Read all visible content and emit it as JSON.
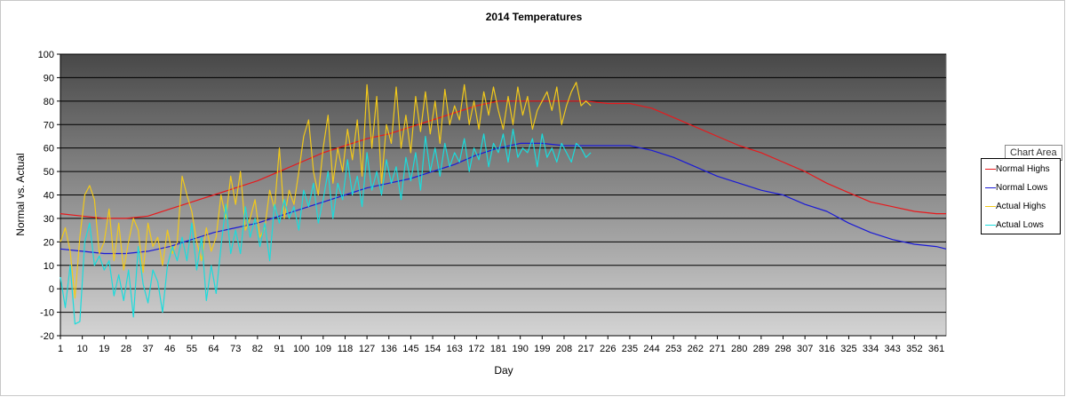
{
  "chart_data": {
    "type": "line",
    "title": "2014 Temperatures",
    "xlabel": "Day",
    "ylabel": "Normal vs. Actual",
    "ylim": [
      -20,
      100
    ],
    "xlim": [
      1,
      365
    ],
    "y_ticks": [
      "-20",
      "-10",
      "0",
      "10",
      "20",
      "30",
      "40",
      "50",
      "60",
      "70",
      "80",
      "90",
      "100"
    ],
    "x_ticks": [
      "1",
      "10",
      "19",
      "28",
      "37",
      "46",
      "55",
      "64",
      "73",
      "82",
      "91",
      "100",
      "109",
      "118",
      "127",
      "136",
      "145",
      "154",
      "163",
      "172",
      "181",
      "190",
      "199",
      "208",
      "217",
      "226",
      "235",
      "244",
      "253",
      "262",
      "271",
      "280",
      "289",
      "298",
      "307",
      "316",
      "325",
      "334",
      "343",
      "352",
      "361"
    ],
    "grid": true,
    "legend_position": "right",
    "series": [
      {
        "name": "Normal Highs",
        "color": "#e8191c",
        "x": [
          1,
          10,
          19,
          28,
          37,
          46,
          55,
          64,
          73,
          82,
          91,
          100,
          109,
          118,
          127,
          136,
          145,
          154,
          163,
          172,
          181,
          190,
          199,
          208,
          217,
          226,
          235,
          244,
          253,
          262,
          271,
          280,
          289,
          298,
          307,
          316,
          325,
          334,
          343,
          352,
          361,
          365
        ],
        "values": [
          32,
          31,
          30,
          30,
          31,
          34,
          37,
          40,
          43,
          46,
          50,
          54,
          58,
          61,
          64,
          66,
          69,
          72,
          75,
          78,
          80,
          80,
          80,
          80,
          80,
          79,
          79,
          77,
          73,
          69,
          65,
          61,
          58,
          54,
          50,
          45,
          41,
          37,
          35,
          33,
          32,
          32
        ]
      },
      {
        "name": "Normal Lows",
        "color": "#1a1ad6",
        "x": [
          1,
          10,
          19,
          28,
          37,
          46,
          55,
          64,
          73,
          82,
          91,
          100,
          109,
          118,
          127,
          136,
          145,
          154,
          163,
          172,
          181,
          190,
          199,
          208,
          217,
          226,
          235,
          244,
          253,
          262,
          271,
          280,
          289,
          298,
          307,
          316,
          325,
          334,
          343,
          352,
          361,
          365
        ],
        "values": [
          17,
          16,
          15,
          15,
          16,
          18,
          21,
          24,
          26,
          28,
          31,
          34,
          37,
          40,
          43,
          45,
          47,
          50,
          53,
          57,
          60,
          62,
          62,
          61,
          61,
          61,
          61,
          59,
          56,
          52,
          48,
          45,
          42,
          40,
          36,
          33,
          28,
          24,
          21,
          19,
          18,
          17
        ]
      },
      {
        "name": "Actual Highs",
        "color": "#f2c91a",
        "x": [
          1,
          3,
          5,
          7,
          9,
          11,
          13,
          15,
          17,
          19,
          21,
          23,
          25,
          27,
          29,
          31,
          33,
          35,
          37,
          39,
          41,
          43,
          45,
          47,
          49,
          51,
          53,
          55,
          57,
          59,
          61,
          63,
          65,
          67,
          69,
          71,
          73,
          75,
          77,
          79,
          81,
          83,
          85,
          87,
          89,
          91,
          93,
          95,
          97,
          99,
          101,
          103,
          105,
          107,
          109,
          111,
          113,
          115,
          117,
          119,
          121,
          123,
          125,
          127,
          129,
          131,
          133,
          135,
          137,
          139,
          141,
          143,
          145,
          147,
          149,
          151,
          153,
          155,
          157,
          159,
          161,
          163,
          165,
          167,
          169,
          171,
          173,
          175,
          177,
          179,
          181,
          183,
          185,
          187,
          189,
          191,
          193,
          195,
          197,
          199,
          201,
          203,
          205,
          207,
          209,
          211,
          213,
          215,
          217,
          219
        ],
        "values": [
          20,
          26,
          16,
          -4,
          22,
          40,
          44,
          38,
          15,
          20,
          34,
          12,
          28,
          8,
          20,
          30,
          25,
          7,
          28,
          18,
          22,
          10,
          25,
          15,
          20,
          48,
          40,
          33,
          20,
          12,
          26,
          16,
          22,
          40,
          30,
          48,
          36,
          50,
          25,
          30,
          38,
          22,
          26,
          42,
          34,
          60,
          30,
          42,
          36,
          50,
          65,
          72,
          50,
          40,
          60,
          74,
          45,
          60,
          50,
          68,
          55,
          72,
          48,
          87,
          60,
          82,
          45,
          70,
          62,
          86,
          60,
          74,
          58,
          82,
          67,
          84,
          66,
          80,
          62,
          85,
          70,
          78,
          72,
          87,
          70,
          80,
          68,
          84,
          74,
          86,
          76,
          68,
          82,
          70,
          86,
          74,
          82,
          68,
          76,
          80,
          84,
          76,
          86,
          70,
          78,
          84,
          88,
          78,
          80,
          78
        ]
      },
      {
        "name": "Actual Lows",
        "color": "#1adcdc",
        "x": [
          1,
          3,
          5,
          7,
          9,
          11,
          13,
          15,
          17,
          19,
          21,
          23,
          25,
          27,
          29,
          31,
          33,
          35,
          37,
          39,
          41,
          43,
          45,
          47,
          49,
          51,
          53,
          55,
          57,
          59,
          61,
          63,
          65,
          67,
          69,
          71,
          73,
          75,
          77,
          79,
          81,
          83,
          85,
          87,
          89,
          91,
          93,
          95,
          97,
          99,
          101,
          103,
          105,
          107,
          109,
          111,
          113,
          115,
          117,
          119,
          121,
          123,
          125,
          127,
          129,
          131,
          133,
          135,
          137,
          139,
          141,
          143,
          145,
          147,
          149,
          151,
          153,
          155,
          157,
          159,
          161,
          163,
          165,
          167,
          169,
          171,
          173,
          175,
          177,
          179,
          181,
          183,
          185,
          187,
          189,
          191,
          193,
          195,
          197,
          199,
          201,
          203,
          205,
          207,
          209,
          211,
          213,
          215,
          217,
          219
        ],
        "values": [
          5,
          -8,
          10,
          -15,
          -14,
          20,
          28,
          10,
          14,
          8,
          12,
          -3,
          6,
          -5,
          8,
          -12,
          18,
          2,
          -6,
          8,
          3,
          -10,
          10,
          18,
          12,
          22,
          12,
          28,
          8,
          22,
          -5,
          10,
          -2,
          18,
          36,
          15,
          25,
          15,
          35,
          22,
          30,
          18,
          28,
          12,
          36,
          28,
          38,
          30,
          35,
          25,
          42,
          35,
          45,
          28,
          38,
          50,
          30,
          45,
          38,
          55,
          40,
          48,
          35,
          58,
          42,
          50,
          40,
          55,
          45,
          52,
          38,
          56,
          46,
          58,
          42,
          65,
          50,
          60,
          48,
          62,
          52,
          58,
          54,
          64,
          50,
          60,
          55,
          66,
          52,
          62,
          58,
          66,
          54,
          68,
          56,
          60,
          58,
          64,
          52,
          66,
          56,
          60,
          54,
          62,
          58,
          54,
          62,
          60,
          56,
          58
        ]
      }
    ]
  },
  "tooltip": {
    "label": "Chart Area"
  }
}
